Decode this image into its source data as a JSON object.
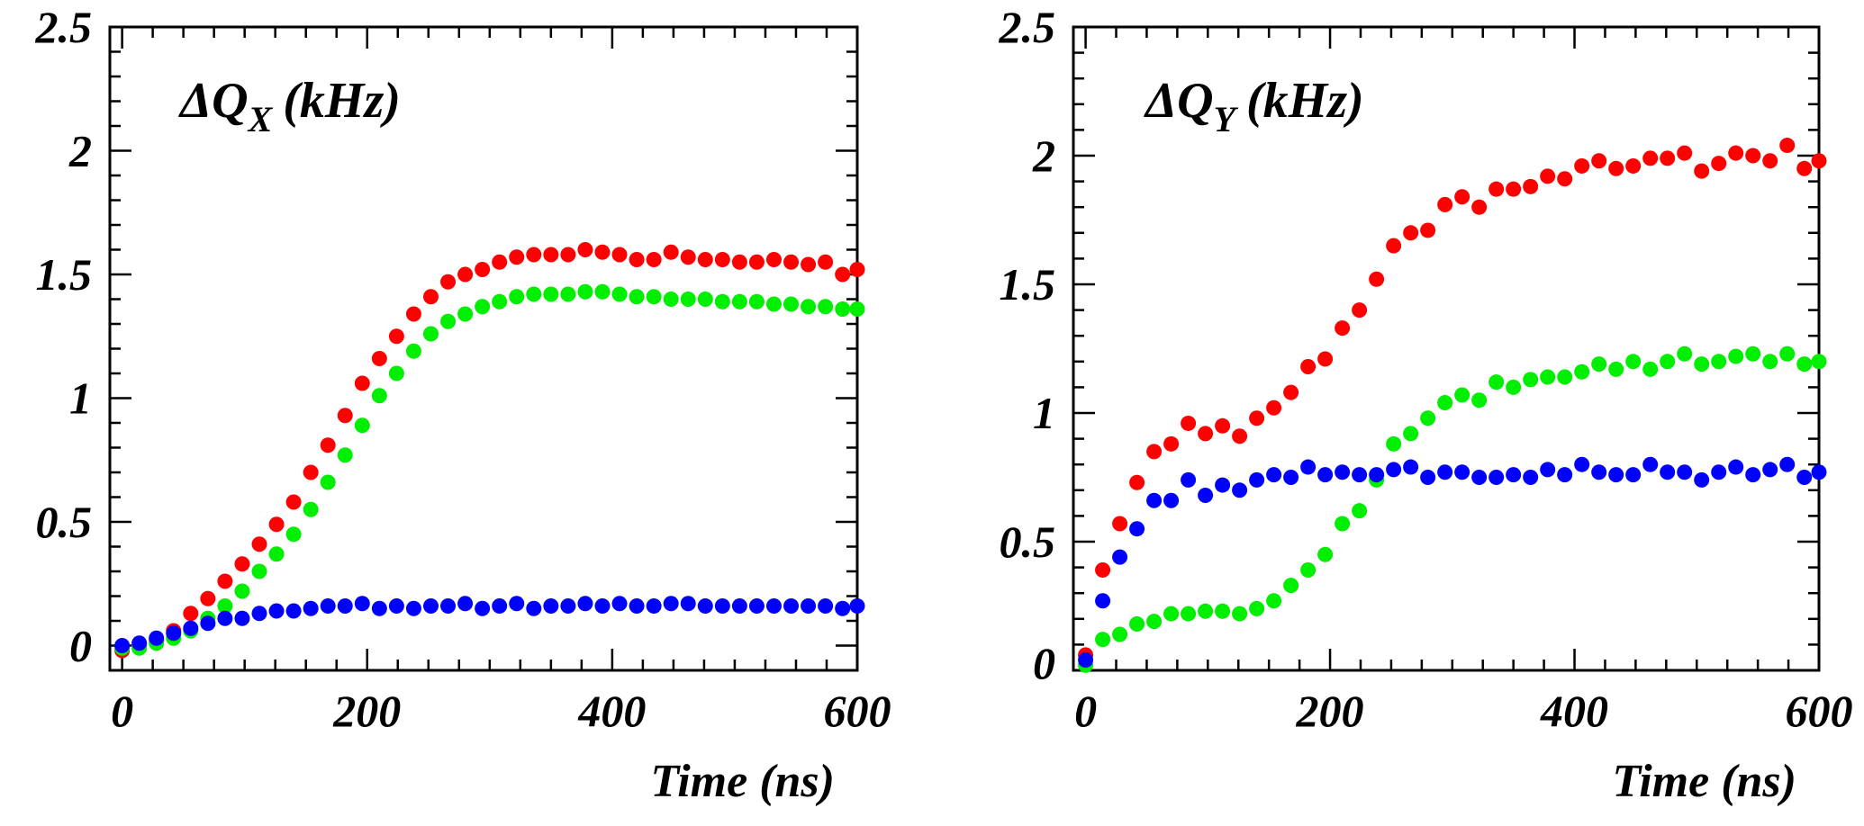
{
  "chart_data": [
    {
      "type": "scatter",
      "title": "ΔQX (kHz)",
      "title_parts": {
        "main": "ΔQ",
        "subscript": "X",
        "suffix": "(kHz)"
      },
      "xlabel": "Time (ns)",
      "ylabel": "",
      "xlim": [
        -10,
        600
      ],
      "ylim": [
        -0.1,
        2.5
      ],
      "x_ticks": [
        0,
        200,
        400,
        600
      ],
      "y_ticks": [
        0,
        0.5,
        1,
        1.5,
        2,
        2.5
      ],
      "x_tick_labels": [
        "0",
        "200",
        "400",
        "600"
      ],
      "y_tick_labels": [
        "0",
        "0.5",
        "1",
        "1.5",
        "2",
        "2.5"
      ],
      "grid": false,
      "series": [
        {
          "color": "#ff0000",
          "x": [
            0,
            14,
            28,
            42,
            56,
            70,
            84,
            98,
            112,
            126,
            140,
            154,
            168,
            182,
            196,
            210,
            224,
            238,
            252,
            266,
            280,
            294,
            308,
            322,
            336,
            350,
            364,
            378,
            392,
            406,
            420,
            434,
            448,
            462,
            476,
            490,
            504,
            518,
            532,
            546,
            560,
            574,
            588,
            600
          ],
          "y": [
            -0.02,
            0.0,
            0.02,
            0.06,
            0.13,
            0.19,
            0.26,
            0.33,
            0.41,
            0.49,
            0.58,
            0.7,
            0.81,
            0.93,
            1.06,
            1.16,
            1.25,
            1.34,
            1.41,
            1.47,
            1.5,
            1.52,
            1.55,
            1.57,
            1.58,
            1.58,
            1.58,
            1.6,
            1.59,
            1.58,
            1.56,
            1.56,
            1.59,
            1.57,
            1.56,
            1.56,
            1.55,
            1.55,
            1.56,
            1.55,
            1.54,
            1.55,
            1.5,
            1.52
          ]
        },
        {
          "color": "#00ee00",
          "x": [
            0,
            14,
            28,
            42,
            56,
            70,
            84,
            98,
            112,
            126,
            140,
            154,
            168,
            182,
            196,
            210,
            224,
            238,
            252,
            266,
            280,
            294,
            308,
            322,
            336,
            350,
            364,
            378,
            392,
            406,
            420,
            434,
            448,
            462,
            476,
            490,
            504,
            518,
            532,
            546,
            560,
            574,
            588,
            600
          ],
          "y": [
            -0.01,
            -0.01,
            0.01,
            0.03,
            0.06,
            0.11,
            0.16,
            0.22,
            0.3,
            0.37,
            0.45,
            0.55,
            0.66,
            0.77,
            0.89,
            1.01,
            1.1,
            1.19,
            1.26,
            1.31,
            1.34,
            1.37,
            1.39,
            1.41,
            1.42,
            1.42,
            1.42,
            1.43,
            1.43,
            1.42,
            1.41,
            1.41,
            1.4,
            1.4,
            1.4,
            1.39,
            1.39,
            1.39,
            1.38,
            1.38,
            1.37,
            1.37,
            1.36,
            1.36
          ]
        },
        {
          "color": "#0000ff",
          "x": [
            0,
            14,
            28,
            42,
            56,
            70,
            84,
            98,
            112,
            126,
            140,
            154,
            168,
            182,
            196,
            210,
            224,
            238,
            252,
            266,
            280,
            294,
            308,
            322,
            336,
            350,
            364,
            378,
            392,
            406,
            420,
            434,
            448,
            462,
            476,
            490,
            504,
            518,
            532,
            546,
            560,
            574,
            588,
            600
          ],
          "y": [
            0.0,
            0.01,
            0.03,
            0.05,
            0.07,
            0.09,
            0.11,
            0.11,
            0.13,
            0.14,
            0.14,
            0.15,
            0.16,
            0.16,
            0.17,
            0.15,
            0.16,
            0.15,
            0.16,
            0.16,
            0.17,
            0.15,
            0.16,
            0.17,
            0.15,
            0.16,
            0.16,
            0.17,
            0.16,
            0.17,
            0.16,
            0.16,
            0.17,
            0.17,
            0.16,
            0.16,
            0.16,
            0.16,
            0.16,
            0.16,
            0.16,
            0.16,
            0.15,
            0.16
          ]
        }
      ]
    },
    {
      "type": "scatter",
      "title": "ΔQY (kHz)",
      "title_parts": {
        "main": "ΔQ",
        "subscript": "Y",
        "suffix": "(kHz)"
      },
      "xlabel": "Time (ns)",
      "ylabel": "",
      "xlim": [
        -10,
        600
      ],
      "ylim": [
        0,
        2.5
      ],
      "x_ticks": [
        0,
        200,
        400,
        600
      ],
      "y_ticks": [
        0,
        0.5,
        1,
        1.5,
        2,
        2.5
      ],
      "x_tick_labels": [
        "0",
        "200",
        "400",
        "600"
      ],
      "y_tick_labels": [
        "0",
        "0.5",
        "1",
        "1.5",
        "2",
        "2.5"
      ],
      "grid": false,
      "series": [
        {
          "color": "#ff0000",
          "x": [
            0,
            14,
            28,
            42,
            56,
            70,
            84,
            98,
            112,
            126,
            140,
            154,
            168,
            182,
            196,
            210,
            224,
            238,
            252,
            266,
            280,
            294,
            308,
            322,
            336,
            350,
            364,
            378,
            392,
            406,
            420,
            434,
            448,
            462,
            476,
            490,
            504,
            518,
            532,
            546,
            560,
            574,
            588,
            600
          ],
          "y": [
            0.06,
            0.39,
            0.57,
            0.73,
            0.85,
            0.88,
            0.96,
            0.92,
            0.95,
            0.91,
            0.98,
            1.02,
            1.08,
            1.18,
            1.21,
            1.33,
            1.4,
            1.52,
            1.65,
            1.7,
            1.71,
            1.81,
            1.84,
            1.8,
            1.87,
            1.87,
            1.88,
            1.92,
            1.91,
            1.96,
            1.98,
            1.95,
            1.96,
            1.99,
            1.99,
            2.01,
            1.94,
            1.97,
            2.01,
            2.0,
            1.98,
            2.04,
            1.95,
            1.98
          ]
        },
        {
          "color": "#00ee00",
          "x": [
            0,
            14,
            28,
            42,
            56,
            70,
            84,
            98,
            112,
            126,
            140,
            154,
            168,
            182,
            196,
            210,
            224,
            238,
            252,
            266,
            280,
            294,
            308,
            322,
            336,
            350,
            364,
            378,
            392,
            406,
            420,
            434,
            448,
            462,
            476,
            490,
            504,
            518,
            532,
            546,
            560,
            574,
            588,
            600
          ],
          "y": [
            0.02,
            0.12,
            0.14,
            0.18,
            0.19,
            0.22,
            0.22,
            0.23,
            0.23,
            0.22,
            0.24,
            0.27,
            0.33,
            0.39,
            0.45,
            0.57,
            0.62,
            0.74,
            0.88,
            0.92,
            0.98,
            1.04,
            1.07,
            1.05,
            1.12,
            1.1,
            1.13,
            1.14,
            1.14,
            1.16,
            1.19,
            1.17,
            1.2,
            1.17,
            1.2,
            1.23,
            1.19,
            1.2,
            1.22,
            1.23,
            1.2,
            1.23,
            1.19,
            1.2
          ]
        },
        {
          "color": "#0000ff",
          "x": [
            0,
            14,
            28,
            42,
            56,
            70,
            84,
            98,
            112,
            126,
            140,
            154,
            168,
            182,
            196,
            210,
            224,
            238,
            252,
            266,
            280,
            294,
            308,
            322,
            336,
            350,
            364,
            378,
            392,
            406,
            420,
            434,
            448,
            462,
            476,
            490,
            504,
            518,
            532,
            546,
            560,
            574,
            588,
            600
          ],
          "y": [
            0.04,
            0.27,
            0.44,
            0.55,
            0.66,
            0.66,
            0.74,
            0.68,
            0.72,
            0.7,
            0.74,
            0.76,
            0.75,
            0.79,
            0.76,
            0.77,
            0.76,
            0.76,
            0.78,
            0.79,
            0.75,
            0.77,
            0.77,
            0.75,
            0.75,
            0.76,
            0.75,
            0.78,
            0.76,
            0.8,
            0.77,
            0.76,
            0.76,
            0.8,
            0.77,
            0.77,
            0.74,
            0.77,
            0.79,
            0.76,
            0.78,
            0.8,
            0.75,
            0.77
          ]
        }
      ]
    }
  ]
}
